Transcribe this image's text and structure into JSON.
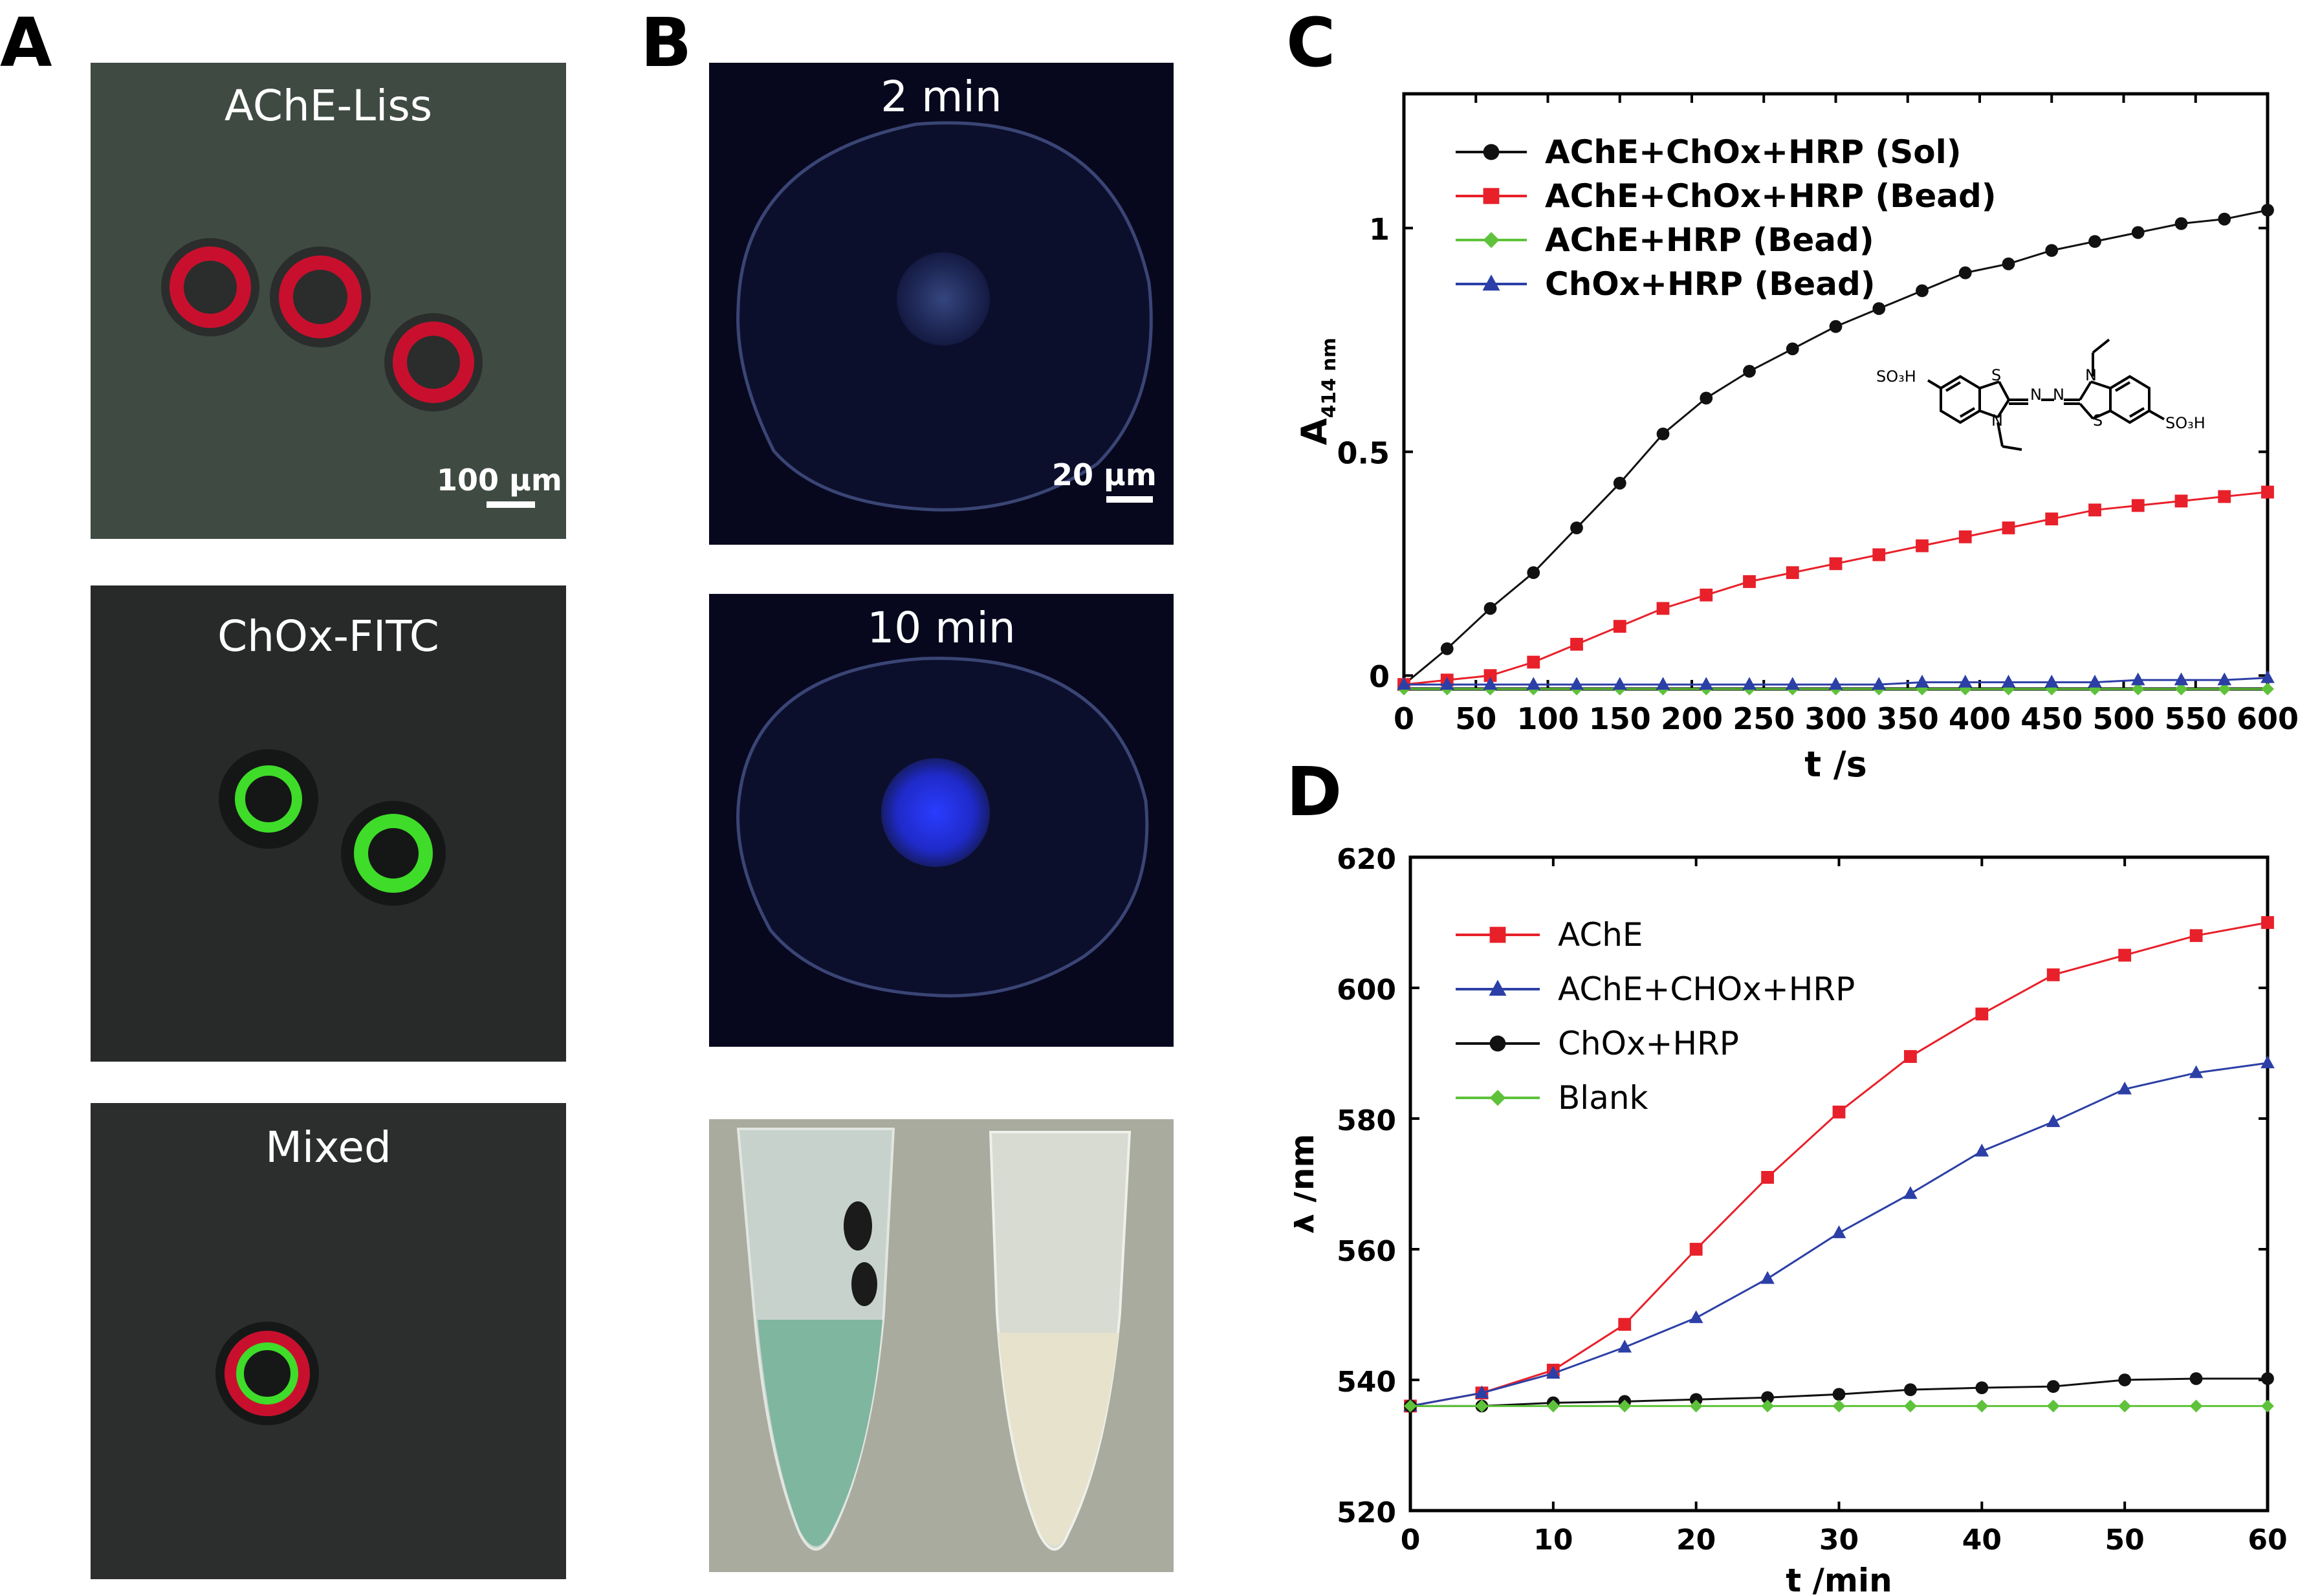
{
  "panels": {
    "A": {
      "letter": "A",
      "images": [
        {
          "title": "AChE-Liss",
          "scale": "100 μm"
        },
        {
          "title": "ChOx-FITC"
        },
        {
          "title": "Mixed"
        }
      ]
    },
    "B": {
      "letter": "B",
      "images": [
        {
          "title": "2 min",
          "scale": "20 μm"
        },
        {
          "title": "10 min"
        },
        {
          "title": ""
        }
      ]
    },
    "C": {
      "letter": "C"
    },
    "D": {
      "letter": "D"
    }
  },
  "structure_labels": {
    "so3h": "SO₃H",
    "s": "S",
    "n": "N"
  },
  "colors": {
    "black": "#111111",
    "red": "#e8202a",
    "green": "#5ec23a",
    "blue": "#2c3fa6",
    "liss": "#c8102e",
    "fitc": "#3fdc2a",
    "dapi": "#2a3cff"
  },
  "chart_data": [
    {
      "panel": "C",
      "type": "line",
      "xlabel": "t /s",
      "ylabel": "A",
      "ylabel_sub": "414 nm",
      "xlim": [
        0,
        600
      ],
      "ylim": [
        -0.03,
        1.3
      ],
      "xticks": [
        0,
        50,
        100,
        150,
        200,
        250,
        300,
        350,
        400,
        450,
        500,
        550,
        600
      ],
      "yticks": [
        0,
        0.5,
        1
      ],
      "ytick_labels": [
        "0",
        "0.5",
        "1"
      ],
      "legend_position": "top-left",
      "x": [
        0,
        30,
        60,
        90,
        120,
        150,
        180,
        210,
        240,
        270,
        300,
        330,
        360,
        390,
        420,
        450,
        480,
        510,
        540,
        570,
        600
      ],
      "series": [
        {
          "name": "AChE+ChOx+HRP (Sol)",
          "color": "#111111",
          "marker": "circle",
          "values": [
            -0.02,
            0.06,
            0.15,
            0.23,
            0.33,
            0.43,
            0.54,
            0.62,
            0.68,
            0.73,
            0.78,
            0.82,
            0.86,
            0.9,
            0.92,
            0.95,
            0.97,
            0.99,
            1.01,
            1.02,
            1.04
          ]
        },
        {
          "name": "AChE+ChOx+HRP (Bead)",
          "color": "#e8202a",
          "marker": "square",
          "values": [
            -0.02,
            -0.01,
            0.0,
            0.03,
            0.07,
            0.11,
            0.15,
            0.18,
            0.21,
            0.23,
            0.25,
            0.27,
            0.29,
            0.31,
            0.33,
            0.35,
            0.37,
            0.38,
            0.39,
            0.4,
            0.41
          ]
        },
        {
          "name": "AChE+HRP (Bead)",
          "color": "#5ec23a",
          "marker": "diamond",
          "values": [
            -0.03,
            -0.03,
            -0.03,
            -0.03,
            -0.03,
            -0.03,
            -0.03,
            -0.03,
            -0.03,
            -0.03,
            -0.03,
            -0.03,
            -0.03,
            -0.03,
            -0.03,
            -0.03,
            -0.03,
            -0.03,
            -0.03,
            -0.03,
            -0.03
          ]
        },
        {
          "name": "ChOx+HRP (Bead)",
          "color": "#2c3fa6",
          "marker": "triangle",
          "values": [
            -0.02,
            -0.02,
            -0.02,
            -0.02,
            -0.02,
            -0.02,
            -0.02,
            -0.02,
            -0.02,
            -0.02,
            -0.02,
            -0.02,
            -0.015,
            -0.015,
            -0.015,
            -0.015,
            -0.015,
            -0.01,
            -0.01,
            -0.01,
            -0.005
          ]
        }
      ]
    },
    {
      "panel": "D",
      "type": "line",
      "xlabel": "t /min",
      "ylabel": "λ /nm",
      "xlim": [
        0,
        60
      ],
      "ylim": [
        520,
        620
      ],
      "xticks": [
        0,
        10,
        20,
        30,
        40,
        50,
        60
      ],
      "yticks": [
        520,
        540,
        560,
        580,
        600,
        620
      ],
      "ytick_labels": [
        "520",
        "540",
        "560",
        "580",
        "600",
        "620"
      ],
      "legend_position": "top-left",
      "x": [
        0,
        5,
        10,
        15,
        20,
        25,
        30,
        35,
        40,
        45,
        50,
        55,
        60
      ],
      "series": [
        {
          "name": "AChE",
          "color": "#e8202a",
          "marker": "square",
          "values": [
            536,
            538,
            541.5,
            548.5,
            560,
            571,
            581,
            589.5,
            596,
            602,
            605,
            608,
            610
          ]
        },
        {
          "name": "AChE+CHOx+HRP",
          "color": "#2c3fa6",
          "marker": "triangle",
          "values": [
            536,
            538,
            541,
            545,
            549.5,
            555.5,
            562.5,
            568.5,
            575,
            579.5,
            584.5,
            587,
            588.5
          ]
        },
        {
          "name": "ChOx+HRP",
          "color": "#111111",
          "marker": "circle",
          "values": [
            536,
            536,
            536.5,
            536.7,
            537,
            537.3,
            537.8,
            538.5,
            538.8,
            539,
            540,
            540.2,
            540.2
          ]
        },
        {
          "name": "Blank",
          "color": "#5ec23a",
          "marker": "diamond",
          "values": [
            536,
            536,
            536,
            536,
            536,
            536,
            536,
            536,
            536,
            536,
            536,
            536,
            536
          ]
        }
      ]
    }
  ]
}
